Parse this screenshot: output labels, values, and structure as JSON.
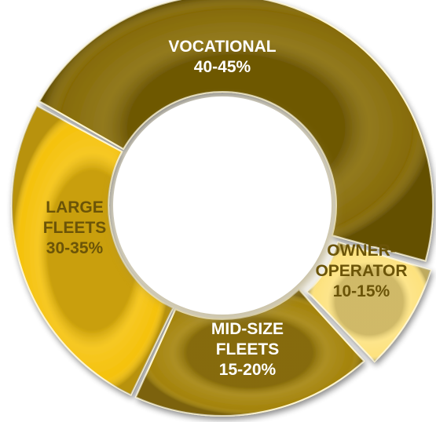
{
  "chart_data": {
    "type": "donut",
    "title": "",
    "segments": [
      {
        "category": "VOCATIONAL",
        "label_lines": [
          "VOCATIONAL",
          "40-45%"
        ],
        "range_pct": [
          40,
          45
        ],
        "color": "#866b06",
        "text_color": "#ffffff"
      },
      {
        "category": "OWNER-OPERATOR",
        "label_lines": [
          "OWNER-",
          "OPERATOR",
          "10-15%"
        ],
        "range_pct": [
          10,
          15
        ],
        "color": "#fde27e",
        "text_color": "#6b5408"
      },
      {
        "category": "MID-SIZE FLEETS",
        "label_lines": [
          "MID-SIZE",
          "FLEETS",
          "15-20%"
        ],
        "range_pct": [
          15,
          20
        ],
        "color": "#a4830a",
        "text_color": "#ffffff"
      },
      {
        "category": "LARGE FLEETS",
        "label_lines": [
          "LARGE",
          "FLEETS",
          "30-35%"
        ],
        "range_pct": [
          30,
          35
        ],
        "color": "#f5c20c",
        "text_color": "#6b5408"
      }
    ]
  }
}
